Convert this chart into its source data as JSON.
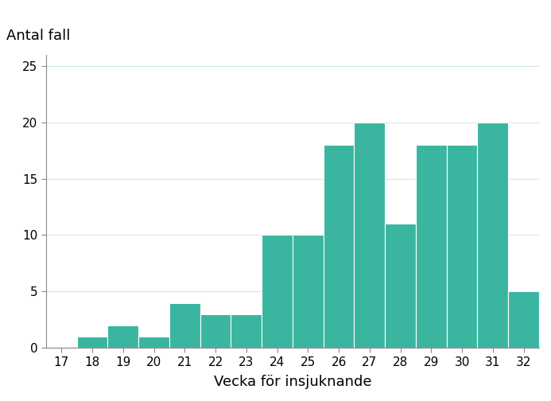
{
  "weeks": [
    17,
    18,
    19,
    20,
    21,
    22,
    23,
    24,
    25,
    26,
    27,
    28,
    29,
    30,
    31,
    32
  ],
  "values": [
    0,
    1,
    2,
    1,
    4,
    3,
    3,
    10,
    10,
    18,
    20,
    11,
    18,
    18,
    20,
    5
  ],
  "bar_color": "#3ab5a0",
  "title": "Antal fall",
  "xlabel": "Vecka för insjuknande",
  "ylim": [
    0,
    26
  ],
  "yticks": [
    0,
    5,
    10,
    15,
    20,
    25
  ],
  "xticks": [
    17,
    18,
    19,
    20,
    21,
    22,
    23,
    24,
    25,
    26,
    27,
    28,
    29,
    30,
    31,
    32
  ],
  "background_color": "#ffffff",
  "grid_color": "#d0e8e8",
  "spine_color": "#888888",
  "title_fontsize": 13,
  "label_fontsize": 13,
  "tick_fontsize": 11
}
